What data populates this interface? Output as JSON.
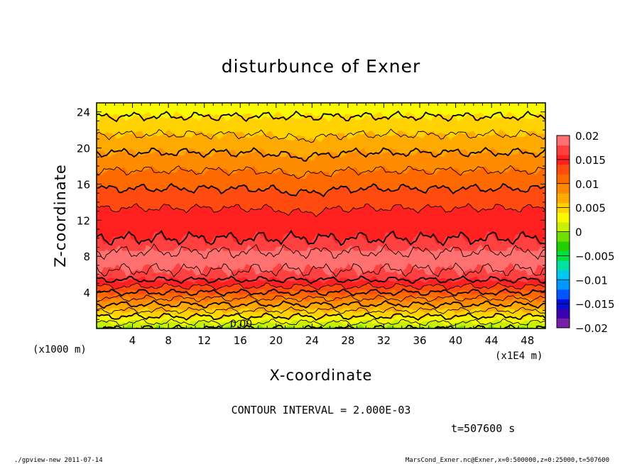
{
  "chart_data": {
    "type": "heatmap",
    "title": "disturbunce of Exner",
    "xlabel": "X-coordinate",
    "ylabel": "Z-coordinate",
    "x_unit": "(x1E4 m)",
    "z_unit": "(x1000 m)",
    "xlim": [
      0,
      50
    ],
    "ylim": [
      0,
      25
    ],
    "x_ticks": [
      4,
      8,
      12,
      16,
      20,
      24,
      28,
      32,
      36,
      40,
      44,
      48
    ],
    "y_ticks": [
      4,
      8,
      12,
      16,
      20,
      24
    ],
    "contour_interval_text": "CONTOUR INTERVAL = 2.000E-03",
    "time_text": "t=507600 s",
    "contour_label": "0.00",
    "colorbar": {
      "range": [
        -0.02,
        0.02
      ],
      "tick_values": [
        0.02,
        0.015,
        0.01,
        0.005,
        0,
        -0.005,
        -0.01,
        -0.015,
        -0.02
      ],
      "tick_labels": [
        "0.02",
        "0.015",
        "0.01",
        "0.005",
        "0",
        "−0.005",
        "−0.01",
        "−0.015",
        "−0.02"
      ],
      "colors": [
        "#7a1fa8",
        "#3b00b0",
        "#0010d8",
        "#0055ff",
        "#0099ff",
        "#00c8f0",
        "#00e0a0",
        "#00e040",
        "#22d000",
        "#70e000",
        "#c8f000",
        "#f8f800",
        "#ffd200",
        "#ffaa00",
        "#ff8c00",
        "#ff6a00",
        "#ff4a10",
        "#ff2020",
        "#ff4040",
        "#ff7070"
      ]
    },
    "profile": {
      "z": [
        0,
        1,
        2,
        3,
        4,
        5,
        6,
        7,
        8,
        9,
        10,
        12,
        14,
        16,
        18,
        20,
        22,
        24,
        25
      ],
      "value": [
        0.0,
        0.003,
        0.006,
        0.009,
        0.012,
        0.015,
        0.0175,
        0.0185,
        0.0185,
        0.0175,
        0.016,
        0.015,
        0.0135,
        0.0115,
        0.0095,
        0.0075,
        0.0055,
        0.0035,
        0.0025
      ]
    }
  },
  "footer": {
    "left": "./gpview-new   2011-07-14",
    "right": "MarsCond_Exner.nc@Exner,x=0:500000,z=0:25000,t=507600"
  }
}
